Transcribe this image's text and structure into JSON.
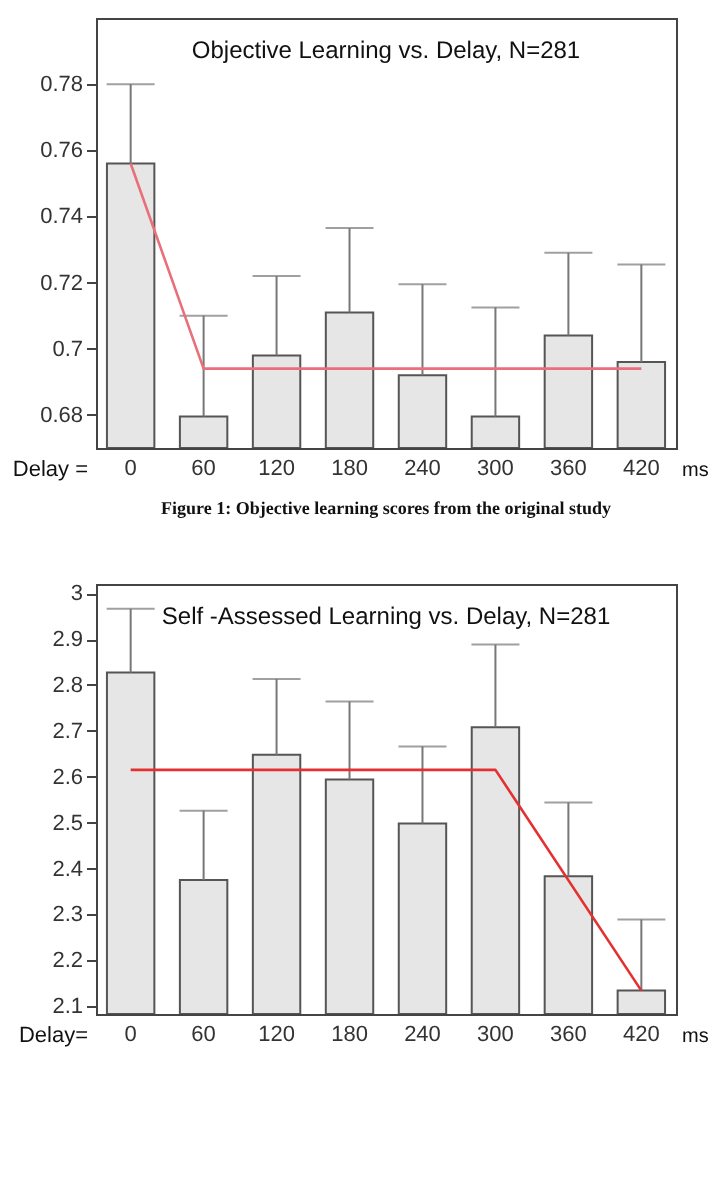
{
  "chart_data": [
    {
      "type": "bar",
      "title": "Objective Learning vs. Delay, N=281",
      "categories": [
        "0",
        "60",
        "120",
        "180",
        "240",
        "300",
        "360",
        "420"
      ],
      "series": [
        {
          "type": "bar",
          "color": "#e6e6e6",
          "values": [
            0.756,
            0.6795,
            0.698,
            0.711,
            0.692,
            0.6795,
            0.704,
            0.696
          ],
          "errors": [
            [
              0.756,
              0.78
            ],
            [
              0.6795,
              0.71
            ],
            [
              0.698,
              0.722
            ],
            [
              0.711,
              0.7365
            ],
            [
              0.692,
              0.7195
            ],
            [
              0.6795,
              0.7125
            ],
            [
              0.704,
              0.729
            ],
            [
              0.696,
              0.7255
            ]
          ]
        },
        {
          "type": "line",
          "color": "#e8707a",
          "x": [
            "0",
            "60",
            "420"
          ],
          "values": [
            0.756,
            0.694,
            0.694
          ]
        }
      ],
      "ylim": [
        0.67,
        0.8
      ],
      "yticks": [
        0.68,
        0.7,
        0.72,
        0.74,
        0.76,
        0.78
      ],
      "grid": false,
      "annotations": [
        "Delay =",
        "ms",
        "Figure 1: Objective learning scores from the original study"
      ]
    },
    {
      "type": "bar",
      "title": "Self -Assessed Learning vs. Delay, N=281",
      "categories": [
        "0",
        "60",
        "120",
        "180",
        "240",
        "300",
        "360",
        "420"
      ],
      "series": [
        {
          "type": "bar",
          "color": "#e6e6e6",
          "values": [
            2.827,
            2.375,
            2.648,
            2.594,
            2.498,
            2.708,
            2.383,
            2.134
          ],
          "errors": [
            [
              2.827,
              2.966
            ],
            [
              2.375,
              2.526
            ],
            [
              2.648,
              2.813
            ],
            [
              2.594,
              2.764
            ],
            [
              2.498,
              2.666
            ],
            [
              2.708,
              2.888
            ],
            [
              2.383,
              2.544
            ],
            [
              2.134,
              2.289
            ]
          ]
        },
        {
          "type": "line",
          "color": "#e53030",
          "x": [
            "0",
            "300",
            "420"
          ],
          "values": [
            2.615,
            2.615,
            2.134
          ]
        }
      ],
      "ylim": [
        2.083,
        3.02
      ],
      "yticks": [
        2.1,
        2.2,
        2.3,
        2.4,
        2.5,
        2.6,
        2.7,
        2.8,
        2.9,
        3
      ],
      "grid": false,
      "annotations": [
        "Delay=",
        "ms"
      ]
    }
  ]
}
